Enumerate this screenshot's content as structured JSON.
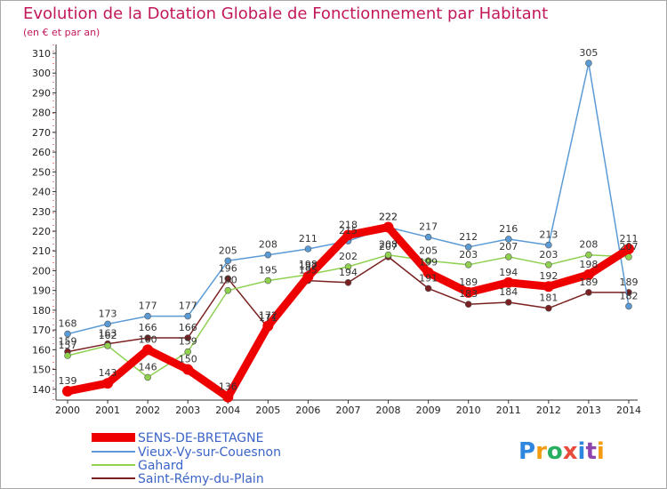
{
  "chart_data": {
    "type": "line",
    "title": "Evolution de la Dotation Globale de Fonctionnement par Habitant",
    "subtitle": "(en € et par an)",
    "xlabel": "",
    "ylabel": "",
    "x": [
      "2000",
      "2001",
      "2002",
      "2003",
      "2004",
      "2005",
      "2006",
      "2007",
      "2008",
      "2009",
      "2010",
      "2011",
      "2012",
      "2013",
      "2014"
    ],
    "ylim": [
      130,
      310
    ],
    "yticks": [
      140,
      150,
      160,
      170,
      180,
      190,
      200,
      210,
      220,
      230,
      240,
      250,
      260,
      270,
      280,
      290,
      300,
      310
    ],
    "grid": false,
    "legend_position": "bottom-left",
    "series": [
      {
        "name": "SENS-DE-BRETAGNE",
        "color": "#ee0000",
        "values": [
          139,
          143,
          160,
          150,
          136,
          172,
          197,
          218,
          222,
          199,
          189,
          194,
          192,
          198,
          211
        ]
      },
      {
        "name": "Vieux-Vy-sur-Couesnon",
        "color": "#5b9bd5",
        "values": [
          168,
          173,
          177,
          177,
          205,
          208,
          211,
          215,
          222,
          217,
          212,
          216,
          213,
          305,
          182
        ]
      },
      {
        "name": "Gahard",
        "color": "#8fd14f",
        "values": [
          157,
          162,
          146,
          159,
          190,
          195,
          198,
          202,
          208,
          205,
          203,
          207,
          203,
          208,
          207
        ]
      },
      {
        "name": "Saint-Rémy-du-Plain",
        "color": "#7a2020",
        "values": [
          159,
          163,
          166,
          166,
          196,
          171,
          195,
          194,
          207,
          191,
          183,
          184,
          181,
          189,
          189
        ]
      }
    ]
  },
  "branding": {
    "logo_text": "Proxiti",
    "logo_colors": [
      "#2e86de",
      "#f39c12",
      "#27ae60",
      "#e74c3c",
      "#2e86de",
      "#8e44ad",
      "#f39c12"
    ]
  }
}
